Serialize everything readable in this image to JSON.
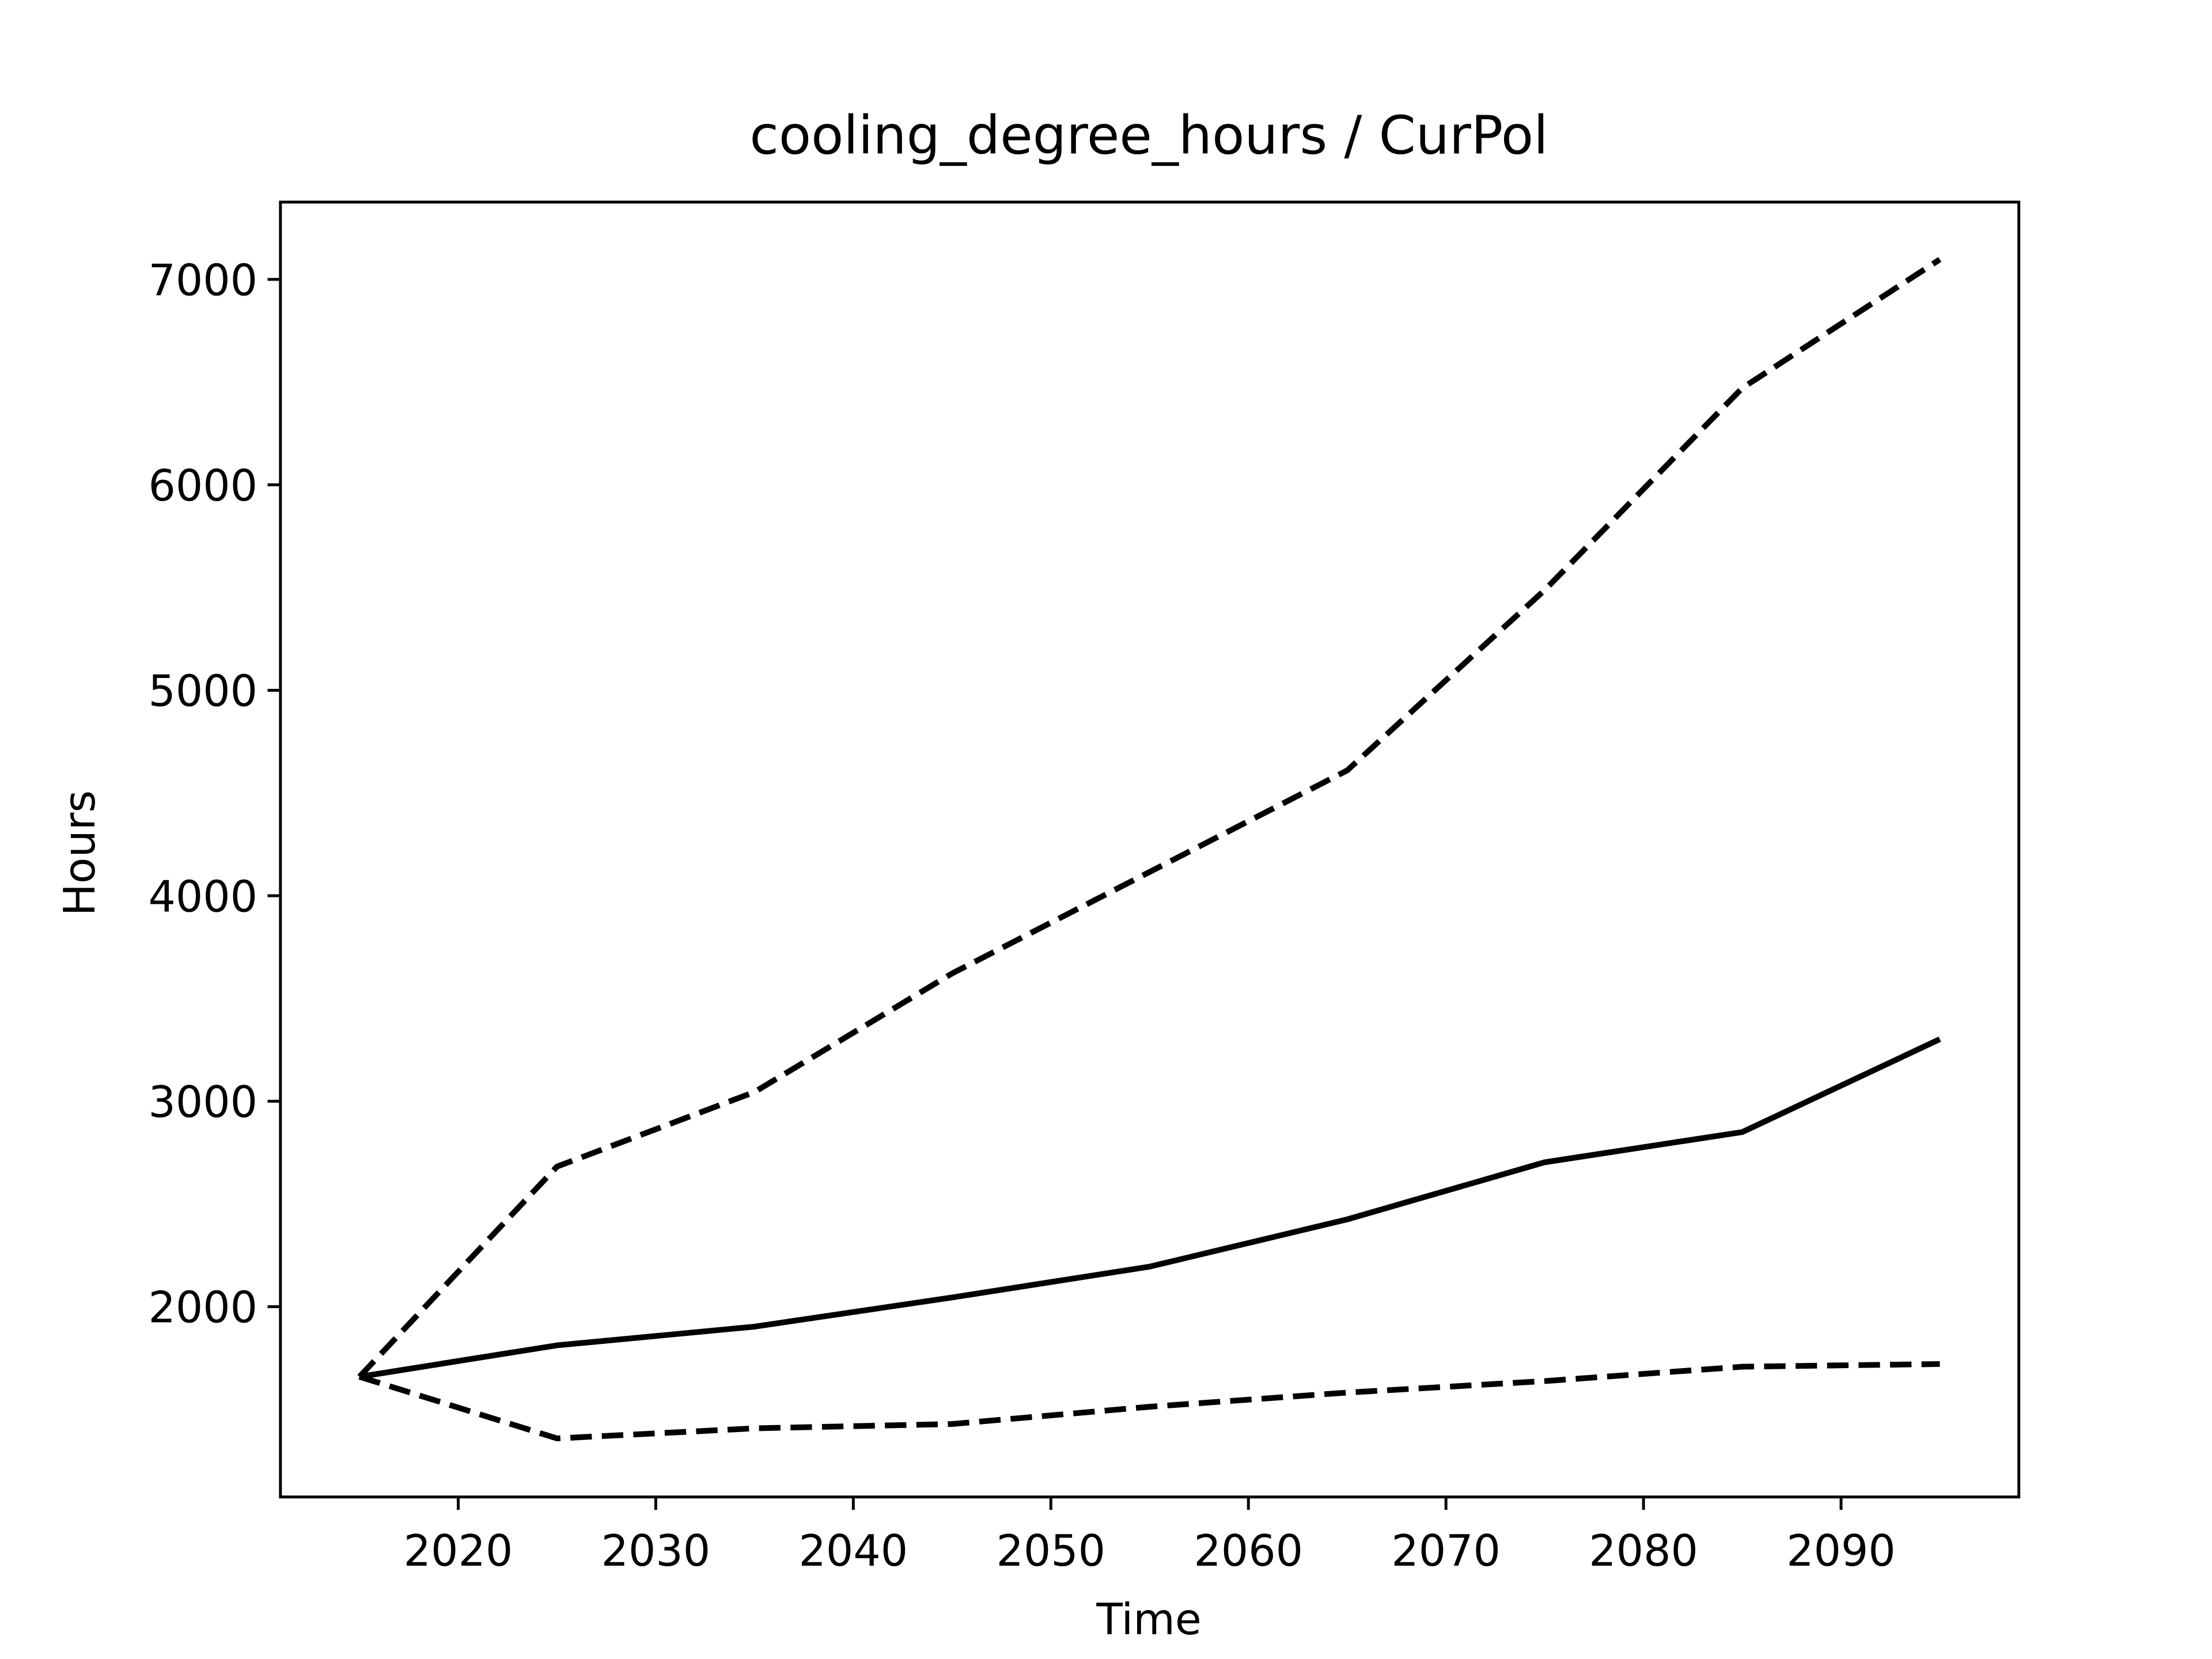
{
  "chart_data": {
    "type": "line",
    "title": "cooling_degree_hours / CurPol",
    "x_label": "Time",
    "y_label": "Hours",
    "x": [
      2015,
      2025,
      2035,
      2045,
      2055,
      2065,
      2075,
      2085,
      2095
    ],
    "series": [
      {
        "color": "#000000",
        "dashed": false,
        "values": [
          1659,
          1812,
          1903,
          2045,
          2195,
          2425,
          2703,
          2850,
          3302
        ]
      },
      {
        "color": "#000000",
        "dashed": true,
        "values": [
          1659,
          2682,
          3045,
          3622,
          4116,
          4610,
          5488,
          6471,
          7097
        ]
      },
      {
        "color": "#000000",
        "dashed": true,
        "values": [
          1659,
          1359,
          1408,
          1429,
          1513,
          1582,
          1638,
          1708,
          1721
        ]
      }
    ],
    "xlim": [
      2011,
      2099
    ],
    "xticks": [
      2020,
      2030,
      2040,
      2050,
      2060,
      2070,
      2080,
      2090
    ],
    "ylim": [
      1074,
      7376
    ],
    "yticks": [
      2000,
      3000,
      4000,
      5000,
      6000,
      7000
    ],
    "grid": false
  }
}
